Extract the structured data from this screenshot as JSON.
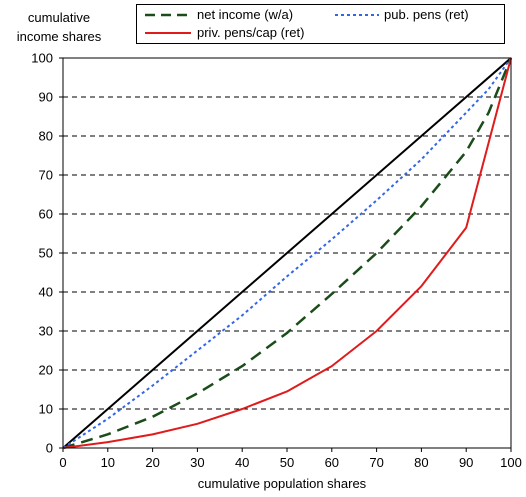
{
  "chart_data": {
    "type": "line",
    "ylabel_lines": [
      "cumulative",
      "income shares"
    ],
    "xlabel": "cumulative population shares",
    "xlim": [
      0,
      100
    ],
    "ylim": [
      0,
      100
    ],
    "x_ticks": [
      "0",
      "10",
      "20",
      "30",
      "40",
      "50",
      "60",
      "70",
      "80",
      "90",
      "100"
    ],
    "y_ticks": [
      "0",
      "10",
      "20",
      "30",
      "40",
      "50",
      "60",
      "70",
      "80",
      "90",
      "100"
    ],
    "grid": "horizontal dashed",
    "legend_position": "top-right",
    "series": [
      {
        "key": "equality",
        "color": "#000000",
        "style": "solid",
        "x": [
          0,
          100
        ],
        "y": [
          0,
          100
        ]
      },
      {
        "key": "net",
        "name": "net income (w/a)",
        "color": "#1a4d1a",
        "style": "longdash",
        "x": [
          0,
          10,
          20,
          30,
          40,
          50,
          60,
          70,
          80,
          90,
          95,
          100
        ],
        "y": [
          0,
          3.5,
          8,
          14,
          21,
          29.5,
          39.5,
          50,
          62,
          76,
          86,
          100
        ]
      },
      {
        "key": "pub",
        "name": "pub. pens (ret)",
        "color": "#3366e6",
        "style": "dotted",
        "x": [
          0,
          10,
          20,
          30,
          40,
          50,
          60,
          70,
          80,
          90,
          95,
          100
        ],
        "y": [
          0,
          7.5,
          16,
          25,
          34,
          44,
          53.5,
          63.5,
          74,
          86,
          92,
          100
        ]
      },
      {
        "key": "priv",
        "name": "priv. pens/cap (ret)",
        "color": "#e01b1b",
        "style": "solid",
        "x": [
          0,
          10,
          20,
          30,
          40,
          50,
          60,
          70,
          80,
          90,
          100
        ],
        "y": [
          0,
          1.5,
          3.5,
          6.2,
          10,
          14.5,
          21,
          30,
          41.5,
          56.5,
          100
        ]
      }
    ]
  }
}
